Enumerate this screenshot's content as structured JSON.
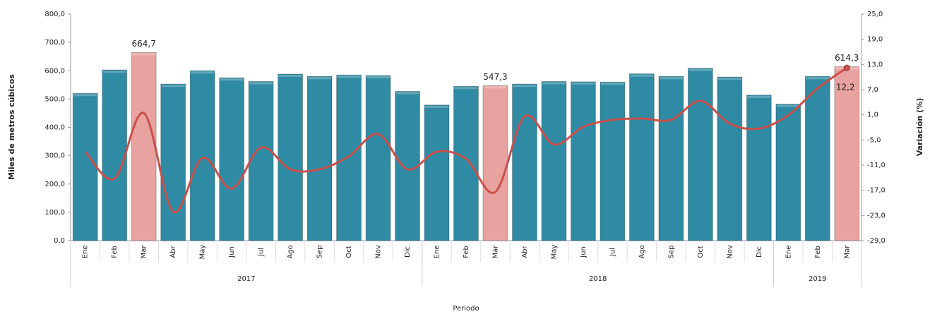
{
  "chart_data": {
    "type": "combo",
    "xlabel": "Periodo",
    "ylabel": "Miles de metros cúbicos",
    "y2label": "Variación (%)",
    "categories": [
      "Ene",
      "Feb",
      "Mar",
      "Abr",
      "May",
      "Jun",
      "Jul",
      "Ago",
      "Sep",
      "Oct",
      "Nov",
      "Dic",
      "Ene",
      "Feb",
      "Mar",
      "Abr",
      "May",
      "Jun",
      "Jul",
      "Ago",
      "Sep",
      "Oct",
      "Nov",
      "Dic",
      "Ene",
      "Feb",
      "Mar"
    ],
    "groups": [
      {
        "name": "2017",
        "count": 12
      },
      {
        "name": "2018",
        "count": 12
      },
      {
        "name": "2019",
        "count": 3
      }
    ],
    "ylim": [
      0,
      800
    ],
    "yticks": [
      {
        "value": 0,
        "label": "0,0"
      },
      {
        "value": 100,
        "label": "100,0"
      },
      {
        "value": 200,
        "label": "200,0"
      },
      {
        "value": 300,
        "label": "300,0"
      },
      {
        "value": 400,
        "label": "400,0"
      },
      {
        "value": 500,
        "label": "500,0"
      },
      {
        "value": 600,
        "label": "600,0"
      },
      {
        "value": 700,
        "label": "700,0"
      },
      {
        "value": 800,
        "label": "800,0"
      }
    ],
    "y2lim": [
      -29,
      25
    ],
    "y2ticks": [
      {
        "value": -29,
        "label": "-29,0"
      },
      {
        "value": -23,
        "label": "-23,0"
      },
      {
        "value": -17,
        "label": "-17,0"
      },
      {
        "value": -11,
        "label": "-11,0"
      },
      {
        "value": -5,
        "label": "-5,0"
      },
      {
        "value": 1,
        "label": "1,0"
      },
      {
        "value": 7,
        "label": "7,0"
      },
      {
        "value": 13,
        "label": "13,0"
      },
      {
        "value": 19,
        "label": "19,0"
      },
      {
        "value": 25,
        "label": "25,0"
      }
    ],
    "series": [
      {
        "type": "bar",
        "values": [
          520,
          603,
          664.7,
          553,
          600,
          575,
          562,
          588,
          580,
          585,
          583,
          527,
          479,
          545,
          547.3,
          553,
          562,
          561,
          560,
          589,
          580,
          609,
          578,
          514,
          482,
          580,
          614.3
        ],
        "value_labels": [
          null,
          null,
          "664,7",
          null,
          null,
          null,
          null,
          null,
          null,
          null,
          null,
          null,
          null,
          null,
          "547,3",
          null,
          null,
          null,
          null,
          null,
          null,
          null,
          null,
          null,
          null,
          null,
          "614,3"
        ],
        "colors": [
          "#2f8aa3",
          "#2f8aa3",
          "#e8a29f",
          "#2f8aa3",
          "#2f8aa3",
          "#2f8aa3",
          "#2f8aa3",
          "#2f8aa3",
          "#2f8aa3",
          "#2f8aa3",
          "#2f8aa3",
          "#2f8aa3",
          "#2f8aa3",
          "#2f8aa3",
          "#e8a29f",
          "#2f8aa3",
          "#2f8aa3",
          "#2f8aa3",
          "#2f8aa3",
          "#2f8aa3",
          "#2f8aa3",
          "#2f8aa3",
          "#2f8aa3",
          "#2f8aa3",
          "#2f8aa3",
          "#2f8aa3",
          "#e8a29f"
        ]
      },
      {
        "type": "line",
        "axis": "y2",
        "color": "#c9504b",
        "values": [
          -7.8,
          -14.2,
          1.4,
          -22.1,
          -9.3,
          -16.6,
          -6.8,
          -12,
          -12,
          -8.9,
          -3.6,
          -12,
          -7.8,
          -9.5,
          -17.4,
          0.6,
          -6.1,
          -1.9,
          -0.2,
          0.1,
          -0.2,
          4.3,
          -1.1,
          -2.3,
          0.9,
          7.3,
          12.2
        ],
        "value_labels": [
          null,
          null,
          null,
          null,
          null,
          null,
          null,
          null,
          null,
          null,
          null,
          null,
          null,
          null,
          null,
          null,
          null,
          null,
          null,
          null,
          null,
          null,
          null,
          null,
          null,
          null,
          "12,2"
        ]
      }
    ]
  }
}
